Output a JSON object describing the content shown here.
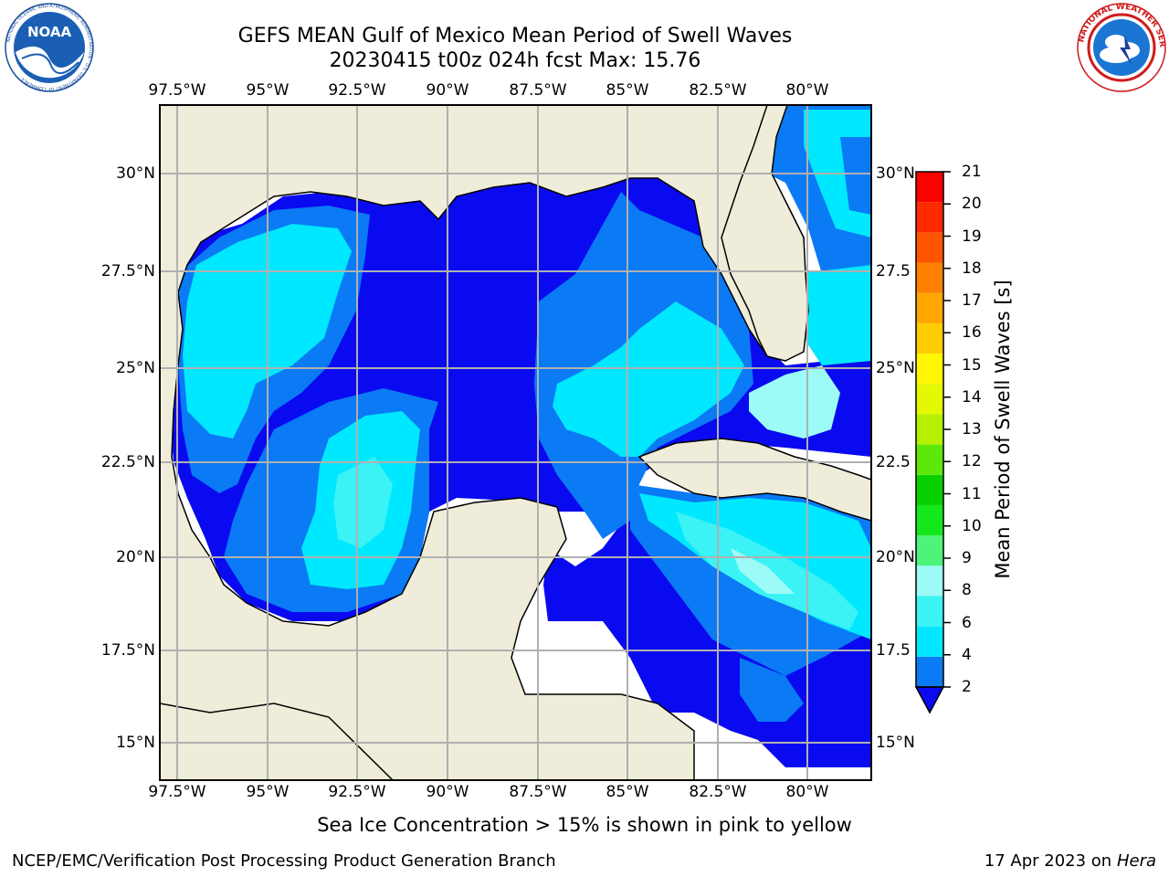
{
  "header": {
    "title": "GEFS MEAN Gulf of Mexico Mean Period of Swell Waves",
    "subtitle": "20230415 t00z 024h fcst   Max: 15.76"
  },
  "logos": {
    "left": {
      "name": "NOAA",
      "ring_text": "NATIONAL OCEANIC AND ATMOSPHERIC ADMINISTRATION · U.S. DEPARTMENT OF COMMERCE"
    },
    "right": {
      "name": "NATIONAL WEATHER SERVICE"
    }
  },
  "map": {
    "longitude_labels": [
      "97.5°W",
      "95°W",
      "92.5°W",
      "90°W",
      "87.5°W",
      "85°W",
      "82.5°W",
      "80°W"
    ],
    "latitude_labels_left": [
      "30°N",
      "27.5°N",
      "25°N",
      "22.5°N",
      "20°N",
      "17.5°N",
      "15°N"
    ],
    "latitude_labels_right": [
      "30°N",
      "27.5",
      "25°N",
      "22.5",
      "20°N",
      "17.5",
      "15°N"
    ],
    "extent": {
      "lon_min": -98,
      "lon_max": -78.2,
      "lat_min": 14.0,
      "lat_max": 31.8
    },
    "colors": {
      "land": "#efedda",
      "no_data": "#ffffff",
      "grid": "#b0b0b0"
    }
  },
  "colorbar": {
    "label": "Mean Period of Swell Waves [s]",
    "ticks": [
      "21",
      "20",
      "19",
      "18",
      "17",
      "16",
      "15",
      "14",
      "13",
      "12",
      "11",
      "10",
      "9",
      "8",
      "6",
      "4",
      "2"
    ],
    "levels": [
      {
        "from": 2,
        "to": 4,
        "color": "#0a7af5"
      },
      {
        "from": 4,
        "to": 6,
        "color": "#00e8ff"
      },
      {
        "from": 6,
        "to": 8,
        "color": "#3bf2f5"
      },
      {
        "from": 8,
        "to": 9,
        "color": "#9cfbf7"
      },
      {
        "from": 9,
        "to": 10,
        "color": "#4cf57a"
      },
      {
        "from": 10,
        "to": 11,
        "color": "#15e81a"
      },
      {
        "from": 11,
        "to": 12,
        "color": "#06d000"
      },
      {
        "from": 12,
        "to": 13,
        "color": "#5de80a"
      },
      {
        "from": 13,
        "to": 14,
        "color": "#b5f000"
      },
      {
        "from": 14,
        "to": 15,
        "color": "#e4f800"
      },
      {
        "from": 15,
        "to": 16,
        "color": "#fff700"
      },
      {
        "from": 16,
        "to": 17,
        "color": "#ffcc00"
      },
      {
        "from": 17,
        "to": 18,
        "color": "#ffa600"
      },
      {
        "from": 18,
        "to": 19,
        "color": "#ff8000"
      },
      {
        "from": 19,
        "to": 20,
        "color": "#ff5500"
      },
      {
        "from": 20,
        "to": 21,
        "color": "#ff2a00"
      },
      {
        "from": 21,
        "to": 22,
        "color": "#ff0000"
      }
    ],
    "under_color": "#0a0af0"
  },
  "footer": {
    "note": "Sea Ice Concentration > 15% is shown in pink to yellow",
    "credit": "NCEP/EMC/Verification Post Processing Product Generation Branch",
    "date": "17 Apr 2023 on",
    "host": "Hera"
  }
}
